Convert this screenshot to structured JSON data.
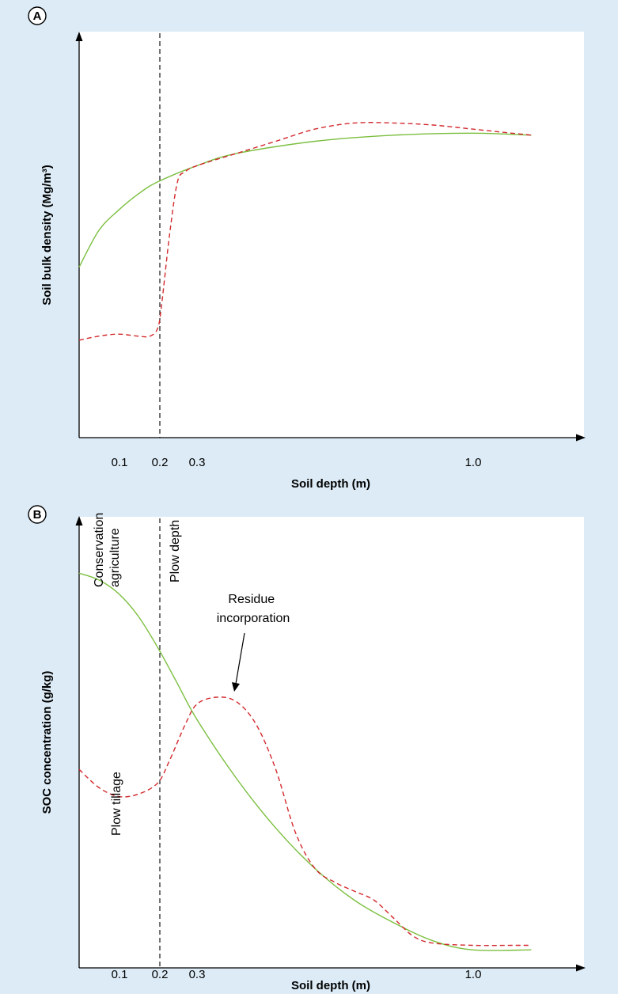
{
  "colors": {
    "conservation": "#7bbf3f",
    "plow": "#d2292d",
    "background": "#dcebf6"
  },
  "chart_data": [
    {
      "type": "line",
      "panel_label": "A",
      "xlabel": "Soil depth (m)",
      "ylabel": "Soil bulk density (Mg/m³)",
      "xticks": [
        0.1,
        0.2,
        0.3,
        1.0
      ],
      "xtick_labels": [
        "0.1",
        "0.2",
        "0.3",
        "1.0"
      ],
      "xlim": [
        0,
        1.28
      ],
      "ylim": [
        0,
        1
      ],
      "vertical_line": 0.2,
      "series": [
        {
          "style": "solid",
          "color": "#7bbf3f",
          "x": [
            0,
            0.05,
            0.1,
            0.15,
            0.2,
            0.3,
            0.4,
            0.6,
            0.8,
            1.0,
            1.15
          ],
          "y": [
            0.42,
            0.51,
            0.56,
            0.6,
            0.63,
            0.67,
            0.7,
            0.73,
            0.745,
            0.75,
            0.745
          ]
        },
        {
          "style": "dashed",
          "color": "#d2292d",
          "x": [
            0,
            0.05,
            0.1,
            0.15,
            0.18,
            0.2,
            0.21,
            0.23,
            0.25,
            0.27,
            0.3,
            0.4,
            0.5,
            0.6,
            0.7,
            0.8,
            0.9,
            1.0,
            1.1,
            1.15
          ],
          "y": [
            0.24,
            0.25,
            0.255,
            0.25,
            0.25,
            0.27,
            0.33,
            0.5,
            0.63,
            0.655,
            0.67,
            0.7,
            0.73,
            0.76,
            0.775,
            0.775,
            0.77,
            0.76,
            0.75,
            0.745
          ]
        }
      ]
    },
    {
      "type": "line",
      "panel_label": "B",
      "xlabel": "Soil depth (m)",
      "ylabel": "SOC concentration (g/kg)",
      "xticks": [
        0.1,
        0.2,
        0.3,
        1.0
      ],
      "xtick_labels": [
        "0.1",
        "0.2",
        "0.3",
        "1.0"
      ],
      "xlim": [
        0,
        1.28
      ],
      "ylim": [
        0,
        1
      ],
      "vertical_line": 0.2,
      "annotations": {
        "conservation": "Conservation agriculture",
        "conservation_line1": "Conservation",
        "conservation_line2": "agriculture",
        "plow_depth": "Plow depth",
        "residue": "Residue incorporation",
        "residue_line1": "Residue",
        "residue_line2": "incorporation",
        "plow_tillage": "Plow tillage"
      },
      "series": [
        {
          "style": "solid",
          "color": "#7bbf3f",
          "x": [
            0,
            0.05,
            0.1,
            0.15,
            0.2,
            0.25,
            0.3,
            0.4,
            0.5,
            0.6,
            0.7,
            0.8,
            0.9,
            1.0,
            1.15
          ],
          "y": [
            0.875,
            0.86,
            0.83,
            0.78,
            0.71,
            0.63,
            0.55,
            0.42,
            0.31,
            0.22,
            0.15,
            0.1,
            0.06,
            0.04,
            0.04
          ]
        },
        {
          "style": "dashed",
          "color": "#d2292d",
          "x": [
            0,
            0.05,
            0.1,
            0.15,
            0.2,
            0.23,
            0.27,
            0.3,
            0.35,
            0.4,
            0.45,
            0.5,
            0.55,
            0.6,
            0.65,
            0.7,
            0.75,
            0.8,
            0.85,
            0.9,
            1.0,
            1.1,
            1.15
          ],
          "y": [
            0.44,
            0.4,
            0.38,
            0.385,
            0.41,
            0.46,
            0.54,
            0.585,
            0.6,
            0.59,
            0.54,
            0.44,
            0.3,
            0.22,
            0.19,
            0.17,
            0.15,
            0.11,
            0.07,
            0.055,
            0.05,
            0.05,
            0.05
          ]
        }
      ]
    }
  ]
}
